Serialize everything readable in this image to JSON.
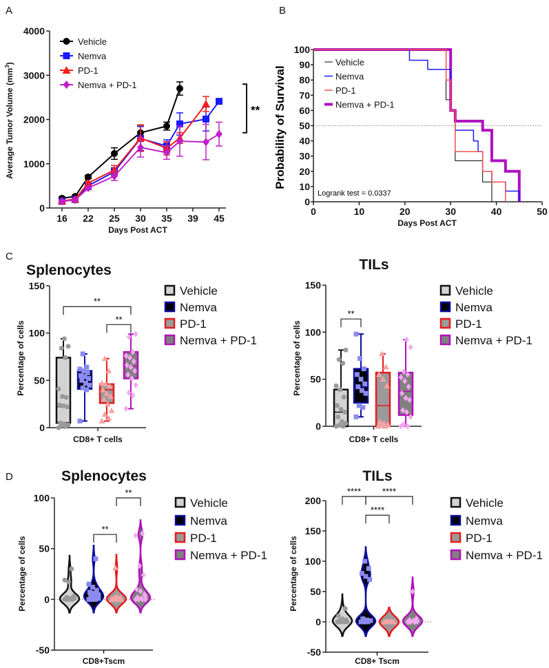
{
  "panel_labels": [
    "A",
    "B",
    "C",
    "D"
  ],
  "chart_data": [
    {
      "type": "line",
      "panel": "A",
      "xlabel": "Days Post ACT",
      "ylabel": "Average Tumor Volume (mm",
      "ylabel_sup": "3",
      "ylabel_close": ")",
      "x_ticks": [
        16,
        22,
        25,
        30,
        35,
        39,
        45
      ],
      "ylim": [
        0,
        4000
      ],
      "y_ticks": [
        0,
        1000,
        2000,
        3000,
        4000
      ],
      "legend_position": "top-left",
      "series": [
        {
          "name": "Vehicle",
          "color": "#000000",
          "marker": "circle",
          "x": [
            16,
            19,
            22,
            25,
            30,
            35,
            37
          ],
          "y": [
            220,
            260,
            700,
            1230,
            1700,
            1850,
            2700
          ],
          "sem": [
            30,
            30,
            40,
            130,
            170,
            90,
            150
          ]
        },
        {
          "name": "Nemva",
          "color": "#1a1aff",
          "marker": "square",
          "x": [
            16,
            19,
            22,
            25,
            30,
            35,
            37,
            42,
            45
          ],
          "y": [
            150,
            190,
            500,
            820,
            1570,
            1400,
            1900,
            2010,
            2410
          ],
          "sem": [
            20,
            20,
            40,
            90,
            270,
            140,
            250,
            270,
            0
          ]
        },
        {
          "name": "PD-1",
          "color": "#ff1a1a",
          "marker": "triangle",
          "x": [
            16,
            19,
            22,
            25,
            30,
            35,
            37,
            42
          ],
          "y": [
            160,
            200,
            560,
            860,
            1580,
            1350,
            1580,
            2350
          ],
          "sem": [
            20,
            20,
            40,
            100,
            300,
            150,
            120,
            170
          ]
        },
        {
          "name": "Nemva + PD-1",
          "color": "#c020c8",
          "marker": "diamond",
          "x": [
            16,
            19,
            22,
            25,
            30,
            35,
            37,
            42,
            45
          ],
          "y": [
            150,
            180,
            450,
            720,
            1370,
            1250,
            1510,
            1490,
            1670
          ],
          "sem": [
            20,
            20,
            40,
            100,
            220,
            150,
            340,
            400,
            270
          ]
        }
      ],
      "significance": {
        "label": "**",
        "range": [
          1700,
          2800
        ]
      }
    },
    {
      "type": "line",
      "subtype": "kaplan-meier",
      "panel": "B",
      "xlabel": "Days Post ACT",
      "ylabel": "Probability of Survival",
      "xlim": [
        0,
        50
      ],
      "x_ticks": [
        0,
        10,
        20,
        30,
        40,
        50
      ],
      "ylim": [
        0,
        100
      ],
      "y_ticks": [
        0,
        10,
        20,
        30,
        40,
        50,
        60,
        70,
        80,
        90,
        100
      ],
      "reference_line": 50,
      "annotation": "Logrank test = 0.0337",
      "legend_position": "top-left",
      "series": [
        {
          "name": "Vehicle",
          "color": "#000000",
          "t": [
            0,
            29,
            30,
            31,
            37,
            39
          ],
          "s": [
            100,
            67,
            60,
            27,
            13,
            0
          ]
        },
        {
          "name": "Nemva",
          "color": "#1a1aff",
          "t": [
            0,
            21,
            25,
            30,
            31,
            35,
            36,
            37,
            39,
            42,
            45
          ],
          "s": [
            100,
            93,
            87,
            60,
            47,
            40,
            33,
            20,
            13,
            7,
            0
          ]
        },
        {
          "name": "PD-1",
          "color": "#f05050",
          "t": [
            0,
            29,
            30,
            31,
            37,
            39,
            42
          ],
          "s": [
            100,
            80,
            60,
            33,
            20,
            13,
            0
          ]
        },
        {
          "name": "Nemva + PD-1",
          "color": "#b010c0",
          "t": [
            0,
            30,
            31,
            37,
            39,
            42,
            45
          ],
          "s": [
            100,
            60,
            53,
            47,
            27,
            20,
            0
          ]
        }
      ]
    },
    {
      "type": "box",
      "panel": "C",
      "title": "Splenocytes",
      "xlabel": "CD8+ T cells",
      "ylabel": "Percentage of cells",
      "ylim": [
        0,
        150
      ],
      "y_ticks": [
        0,
        50,
        100,
        150
      ],
      "groups": [
        {
          "name": "Vehicle",
          "box": [
            0,
            5,
            22,
            74,
            94
          ],
          "points": [
            0,
            1,
            2,
            3,
            4,
            5,
            22,
            23,
            24,
            32,
            33,
            41,
            74,
            84,
            86,
            94
          ]
        },
        {
          "name": "Nemva",
          "box": [
            7,
            41,
            52,
            60,
            78
          ],
          "points": [
            7,
            40,
            42,
            45,
            47,
            50,
            52,
            54,
            55,
            58,
            60,
            62,
            64,
            78
          ]
        },
        {
          "name": "PD-1",
          "box": [
            7,
            26,
            40,
            46,
            73
          ],
          "points": [
            7,
            10,
            14,
            18,
            25,
            30,
            33,
            36,
            40,
            44,
            46,
            47,
            60,
            73
          ]
        },
        {
          "name": "Nemva + PD-1",
          "box": [
            20,
            52,
            65,
            80,
            99
          ],
          "points": [
            20,
            34,
            37,
            45,
            52,
            56,
            60,
            64,
            66,
            70,
            74,
            76,
            80,
            96,
            99
          ]
        }
      ],
      "significance": [
        {
          "groups": [
            0,
            3
          ],
          "y": 128,
          "label": "**"
        },
        {
          "groups": [
            2,
            3
          ],
          "y": 109,
          "label": "**"
        }
      ]
    },
    {
      "type": "box",
      "panel": "C",
      "title": "TILs",
      "xlabel": "CD8+ T cells",
      "ylabel": "Percentage of cells",
      "ylim": [
        0,
        150
      ],
      "y_ticks": [
        0,
        50,
        100,
        150
      ],
      "groups": [
        {
          "name": "Vehicle",
          "box": [
            0,
            0,
            15,
            39,
            81
          ],
          "points": [
            0,
            0,
            1,
            3,
            5,
            10,
            15,
            18,
            22,
            31,
            39,
            43,
            67,
            71,
            81
          ]
        },
        {
          "name": "Nemva",
          "box": [
            10,
            25,
            42,
            61,
            98
          ],
          "points": [
            10,
            20,
            22,
            35,
            38,
            42,
            45,
            50,
            55,
            61,
            72,
            98
          ]
        },
        {
          "name": "PD-1",
          "box": [
            0,
            0,
            22,
            57,
            77
          ],
          "points": [
            0,
            0,
            1,
            2,
            3,
            5,
            43,
            50,
            55,
            63,
            77
          ]
        },
        {
          "name": "Nemva + PD-1",
          "box": [
            0,
            12,
            37,
            57,
            92
          ],
          "points": [
            0,
            0,
            2,
            10,
            15,
            17,
            28,
            30,
            35,
            42,
            48,
            52,
            55,
            58,
            84,
            92
          ]
        }
      ],
      "significance": [
        {
          "groups": [
            0,
            1
          ],
          "y": 114,
          "label": "**"
        }
      ]
    },
    {
      "type": "violin",
      "panel": "D",
      "title": "Splenocytes",
      "xlabel": "CD8+Tscm",
      "ylabel": "Percentage of cells",
      "ylim": [
        -50,
        100
      ],
      "y_ticks": [
        -50,
        0,
        50,
        100
      ],
      "groups": [
        {
          "name": "Vehicle",
          "points": [
            0,
            0,
            0,
            1,
            1,
            2,
            3,
            0,
            0,
            0,
            17,
            19,
            30,
            0,
            1
          ]
        },
        {
          "name": "Nemva",
          "points": [
            0,
            0,
            0,
            1,
            2,
            3,
            5,
            6,
            7,
            9,
            12,
            15,
            40,
            0,
            4
          ]
        },
        {
          "name": "PD-1",
          "points": [
            0,
            0,
            0,
            0,
            1,
            1,
            2,
            3,
            0,
            0,
            31,
            0,
            0
          ]
        },
        {
          "name": "Nemva + PD-1",
          "points": [
            0,
            0,
            0,
            0,
            1,
            2,
            5,
            8,
            10,
            24,
            33,
            63,
            65,
            0,
            3
          ]
        }
      ],
      "significance": [
        {
          "groups": [
            1,
            2
          ],
          "y": 64,
          "label": "**"
        },
        {
          "groups": [
            2,
            3
          ],
          "y": 100,
          "label": "**"
        }
      ]
    },
    {
      "type": "violin",
      "panel": "D",
      "title": "TILs",
      "xlabel": "CD8+ Tscm",
      "ylabel": "Percentage of cells",
      "ylim": [
        -50,
        200
      ],
      "y_ticks": [
        -50,
        0,
        50,
        100,
        150,
        200
      ],
      "groups": [
        {
          "name": "Vehicle",
          "points": [
            0,
            0,
            0,
            0,
            1,
            2,
            3,
            5,
            10,
            22,
            0,
            0
          ]
        },
        {
          "name": "Nemva",
          "points": [
            0,
            0,
            0,
            2,
            3,
            5,
            70,
            75,
            80,
            88,
            100,
            0
          ]
        },
        {
          "name": "PD-1",
          "points": [
            0,
            0,
            0,
            0,
            0,
            0,
            0,
            0
          ]
        },
        {
          "name": "Nemva + PD-1",
          "points": [
            0,
            0,
            0,
            1,
            2,
            3,
            5,
            50,
            0,
            0
          ]
        }
      ],
      "significance": [
        {
          "groups": [
            0,
            1
          ],
          "y": 207,
          "label": "****"
        },
        {
          "groups": [
            1,
            3
          ],
          "y": 207,
          "label": "****"
        },
        {
          "groups": [
            1,
            2
          ],
          "y": 176,
          "label": "****"
        }
      ]
    }
  ],
  "group_styles": [
    {
      "name": "Vehicle",
      "box_fill": "#d3d3d3",
      "stroke": "#111111",
      "point": "#9a9a9a"
    },
    {
      "name": "Nemva",
      "box_fill": "#000000",
      "stroke": "#0d0d9e",
      "point": "#8a8af2"
    },
    {
      "name": "PD-1",
      "box_fill": "#9a9a9a",
      "stroke": "#e8191c",
      "point": "#f5a3a3"
    },
    {
      "name": "Nemva + PD-1",
      "box_fill": "#808080",
      "stroke": "#b010b8",
      "point": "#f3a8f0"
    }
  ]
}
